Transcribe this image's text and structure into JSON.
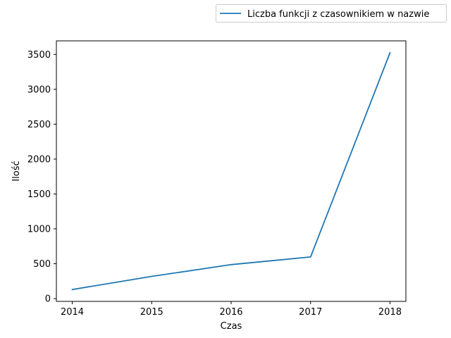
{
  "chart_data": {
    "type": "line",
    "x": [
      2014,
      2015,
      2016,
      2017,
      2018
    ],
    "series": [
      {
        "name": "Liczba funkcji z czasownikiem w nazwie",
        "values": [
          130,
          318,
          487,
          597,
          3525
        ],
        "color": "#1f77b4"
      }
    ],
    "title": "",
    "xlabel": "Czas",
    "ylabel": "Ilość",
    "xticks": [
      "2014",
      "2015",
      "2016",
      "2017",
      "2018"
    ],
    "yticks": [
      "0",
      "500",
      "1000",
      "1500",
      "2000",
      "2500",
      "3000",
      "3500"
    ],
    "xlim": [
      2013.8,
      2018.2
    ],
    "ylim": [
      -40,
      3695
    ],
    "grid": false,
    "legend_position": "top-right, outside plot"
  }
}
